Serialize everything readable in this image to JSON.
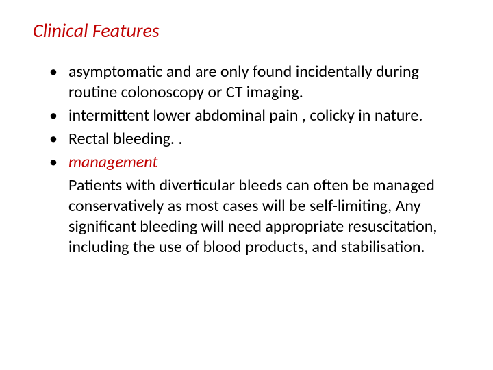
{
  "slide": {
    "title": "Clinical Features",
    "title_color": "#c00000",
    "bullets": [
      {
        "text": "asymptomatic and are only found incidentally  during routine colonoscopy or CT imaging.",
        "italic": false,
        "color": "#000000"
      },
      {
        "text": "intermittent lower abdominal pain , colicky in nature.",
        "italic": false,
        "color": "#000000"
      },
      {
        "text": "Rectal bleeding. .",
        "italic": false,
        "color": "#000000"
      },
      {
        "text": "management",
        "italic": true,
        "color": "#c00000"
      }
    ],
    "paragraph": "Patients with diverticular bleeds can often be managed conservatively as most cases will be self-limiting, Any significant bleeding will need appropriate resuscitation, including the use of blood products, and stabilisation.",
    "background_color": "#ffffff",
    "body_font_size_pt": 18,
    "title_font_size_pt": 21
  }
}
